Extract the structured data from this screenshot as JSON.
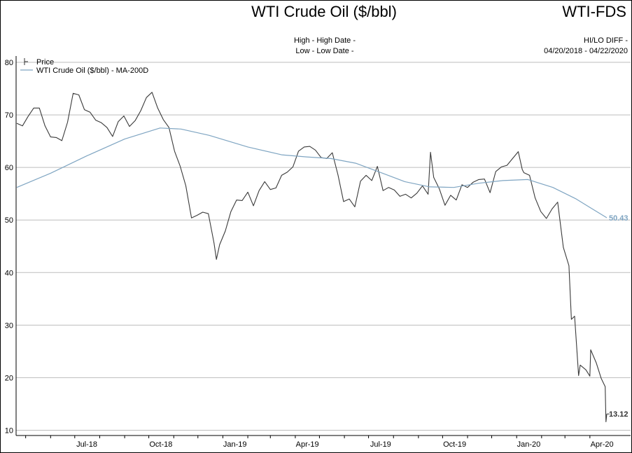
{
  "header": {
    "title": "WTI Crude Oil ($/bbl)",
    "ticker": "WTI-FDS",
    "high_line": "High - High Date -",
    "low_line": "Low - Low Date -",
    "hilo_diff": "HI/LO DIFF -",
    "date_range": "04/20/2018 - 04/22/2020"
  },
  "legend": {
    "price": "Price",
    "ma": "WTI Crude Oil ($/bbl) - MA-200D"
  },
  "colors": {
    "price": "#3a3a3a",
    "ma": "#7fa5c2",
    "grid": "#bdbdbd"
  },
  "chart_data": {
    "type": "line",
    "title": "WTI Crude Oil ($/bbl)",
    "x_tick_labels": [
      "Jul-18",
      "Oct-18",
      "Jan-19",
      "Apr-19",
      "Jul-19",
      "Oct-19",
      "Jan-20",
      "Apr-20"
    ],
    "y_ticks": [
      10,
      20,
      30,
      40,
      50,
      60,
      70,
      80
    ],
    "ylim": [
      10,
      80
    ],
    "grid": true,
    "legend_position": "top-left",
    "last_value_labels": {
      "price": "13.12",
      "ma": "50.43"
    },
    "series": [
      {
        "name": "Price",
        "x": [
          "2018-04-20",
          "2018-04-27",
          "2018-05-04",
          "2018-05-11",
          "2018-05-18",
          "2018-05-25",
          "2018-06-01",
          "2018-06-08",
          "2018-06-15",
          "2018-06-22",
          "2018-06-29",
          "2018-07-06",
          "2018-07-13",
          "2018-07-20",
          "2018-07-27",
          "2018-08-03",
          "2018-08-10",
          "2018-08-17",
          "2018-08-24",
          "2018-08-31",
          "2018-09-07",
          "2018-09-14",
          "2018-09-21",
          "2018-09-28",
          "2018-10-05",
          "2018-10-12",
          "2018-10-19",
          "2018-10-26",
          "2018-11-02",
          "2018-11-09",
          "2018-11-16",
          "2018-11-23",
          "2018-11-30",
          "2018-12-07",
          "2018-12-14",
          "2018-12-21",
          "2018-12-24",
          "2018-12-28",
          "2019-01-04",
          "2019-01-11",
          "2019-01-18",
          "2019-01-25",
          "2019-02-01",
          "2019-02-08",
          "2019-02-15",
          "2019-02-22",
          "2019-03-01",
          "2019-03-08",
          "2019-03-15",
          "2019-03-22",
          "2019-03-29",
          "2019-04-05",
          "2019-04-12",
          "2019-04-19",
          "2019-04-26",
          "2019-05-03",
          "2019-05-10",
          "2019-05-17",
          "2019-05-24",
          "2019-05-31",
          "2019-06-07",
          "2019-06-14",
          "2019-06-21",
          "2019-06-28",
          "2019-07-05",
          "2019-07-12",
          "2019-07-19",
          "2019-07-26",
          "2019-08-02",
          "2019-08-09",
          "2019-08-16",
          "2019-08-23",
          "2019-08-30",
          "2019-09-06",
          "2019-09-13",
          "2019-09-16",
          "2019-09-20",
          "2019-09-27",
          "2019-10-04",
          "2019-10-11",
          "2019-10-18",
          "2019-10-25",
          "2019-11-01",
          "2019-11-08",
          "2019-11-15",
          "2019-11-22",
          "2019-11-29",
          "2019-12-06",
          "2019-12-13",
          "2019-12-20",
          "2019-12-27",
          "2020-01-03",
          "2020-01-08",
          "2020-01-10",
          "2020-01-17",
          "2020-01-24",
          "2020-01-31",
          "2020-02-07",
          "2020-02-14",
          "2020-02-21",
          "2020-02-28",
          "2020-03-06",
          "2020-03-09",
          "2020-03-13",
          "2020-03-18",
          "2020-03-20",
          "2020-03-27",
          "2020-04-01",
          "2020-04-02",
          "2020-04-09",
          "2020-04-15",
          "2020-04-20",
          "2020-04-21",
          "2020-04-22"
        ],
        "values": [
          68.4,
          67.9,
          69.7,
          71.3,
          71.3,
          67.9,
          65.8,
          65.7,
          65.1,
          68.6,
          74.1,
          73.8,
          71.0,
          70.5,
          69.0,
          68.5,
          67.6,
          65.9,
          68.7,
          69.8,
          67.8,
          68.9,
          70.8,
          73.3,
          74.3,
          71.3,
          69.1,
          67.6,
          63.1,
          60.2,
          56.5,
          50.4,
          50.9,
          51.5,
          51.2,
          45.6,
          42.5,
          45.3,
          47.9,
          51.6,
          53.8,
          53.7,
          55.3,
          52.7,
          55.6,
          57.3,
          55.8,
          56.1,
          58.5,
          59.1,
          60.1,
          63.1,
          63.9,
          64.0,
          63.3,
          61.9,
          61.7,
          62.8,
          58.6,
          53.5,
          54.0,
          52.5,
          57.4,
          58.5,
          57.5,
          60.2,
          55.6,
          56.2,
          55.7,
          54.5,
          54.9,
          54.2,
          55.1,
          56.5,
          54.9,
          62.9,
          58.1,
          55.9,
          52.8,
          54.7,
          53.8,
          56.7,
          56.2,
          57.2,
          57.7,
          57.8,
          55.2,
          59.2,
          60.1,
          60.4,
          61.7,
          63.0,
          59.6,
          59.0,
          58.5,
          54.2,
          51.6,
          50.3,
          52.1,
          53.4,
          44.8,
          41.3,
          31.1,
          31.7,
          20.4,
          22.4,
          21.5,
          20.3,
          25.3,
          22.8,
          19.9,
          18.3,
          11.6,
          13.1
        ],
        "color": "#3a3a3a"
      },
      {
        "name": "WTI Crude Oil ($/bbl) - MA-200D",
        "x": [
          "2018-04-20",
          "2018-06-01",
          "2018-07-16",
          "2018-09-01",
          "2018-10-15",
          "2018-11-10",
          "2018-12-15",
          "2019-02-01",
          "2019-03-15",
          "2019-04-15",
          "2019-05-15",
          "2019-06-15",
          "2019-07-15",
          "2019-08-15",
          "2019-09-15",
          "2019-10-15",
          "2019-11-15",
          "2019-12-15",
          "2020-01-15",
          "2020-02-15",
          "2020-03-15",
          "2020-04-01",
          "2020-04-22"
        ],
        "values": [
          56.2,
          58.9,
          62.2,
          65.4,
          67.5,
          67.3,
          66.1,
          63.9,
          62.4,
          62.0,
          61.7,
          60.8,
          59.1,
          57.3,
          56.3,
          56.2,
          57.0,
          57.5,
          57.7,
          56.2,
          54.0,
          52.4,
          50.43
        ],
        "color": "#7fa5c2"
      }
    ]
  }
}
